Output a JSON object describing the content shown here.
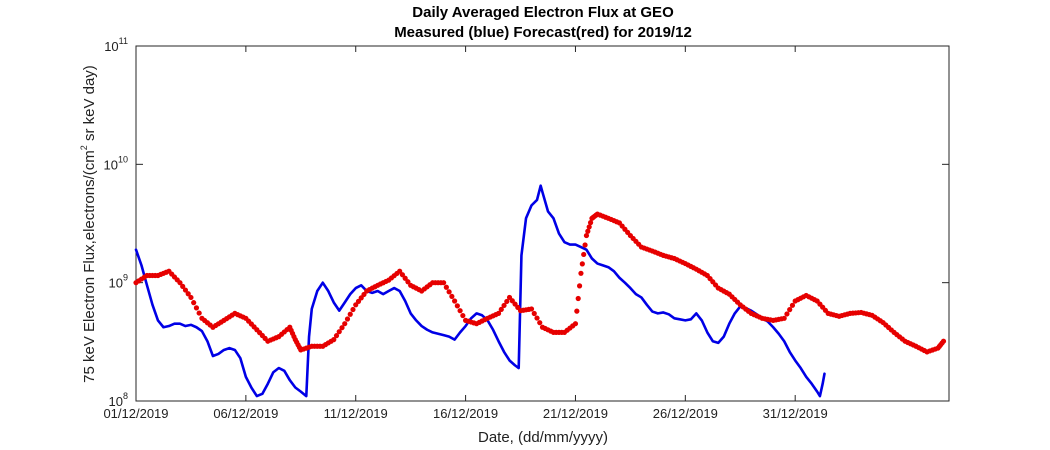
{
  "chart_data": {
    "type": "line",
    "title": "Daily Averaged Electron Flux at GEO",
    "subtitle": "Measured (blue) Forecast(red) for 2019/12",
    "xlabel": "Date, (dd/mm/yyyy)",
    "ylabel": {
      "prefix": "75 keV Electron Flux,electrons/(cm",
      "sup": "2",
      "suffix": " sr keV day)"
    },
    "yscale": "log",
    "ylim": [
      100000000,
      100000000000
    ],
    "xlim": [
      "2019-12-01",
      "2020-01-07"
    ],
    "y_ticks": [
      {
        "base": "10",
        "exp": "8",
        "value": 100000000
      },
      {
        "base": "10",
        "exp": "9",
        "value": 1000000000
      },
      {
        "base": "10",
        "exp": "10",
        "value": 10000000000
      },
      {
        "base": "10",
        "exp": "11",
        "value": 100000000000
      }
    ],
    "x_ticks": [
      {
        "label": "01/12/2019",
        "date": "2019-12-01"
      },
      {
        "label": "06/12/2019",
        "date": "2019-12-06"
      },
      {
        "label": "11/12/2019",
        "date": "2019-12-11"
      },
      {
        "label": "16/12/2019",
        "date": "2019-12-16"
      },
      {
        "label": "21/12/2019",
        "date": "2019-12-21"
      },
      {
        "label": "26/12/2019",
        "date": "2019-12-26"
      },
      {
        "label": "31/12/2019",
        "date": "2019-12-31"
      }
    ],
    "grid": false,
    "series": [
      {
        "color": "#0000e6",
        "style": "line",
        "points": [
          [
            "2019-12-01 00:00",
            1900000000.0
          ],
          [
            "2019-12-01 06:00",
            1400000000.0
          ],
          [
            "2019-12-01 12:00",
            950000000.0
          ],
          [
            "2019-12-01 18:00",
            650000000.0
          ],
          [
            "2019-12-02 00:00",
            480000000.0
          ],
          [
            "2019-12-02 06:00",
            420000000.0
          ],
          [
            "2019-12-02 12:00",
            430000000.0
          ],
          [
            "2019-12-02 18:00",
            450000000.0
          ],
          [
            "2019-12-03 00:00",
            450000000.0
          ],
          [
            "2019-12-03 06:00",
            430000000.0
          ],
          [
            "2019-12-03 12:00",
            440000000.0
          ],
          [
            "2019-12-03 18:00",
            420000000.0
          ],
          [
            "2019-12-04 00:00",
            390000000.0
          ],
          [
            "2019-12-04 06:00",
            320000000.0
          ],
          [
            "2019-12-04 12:00",
            240000000.0
          ],
          [
            "2019-12-04 18:00",
            250000000.0
          ],
          [
            "2019-12-05 00:00",
            270000000.0
          ],
          [
            "2019-12-05 06:00",
            280000000.0
          ],
          [
            "2019-12-05 12:00",
            270000000.0
          ],
          [
            "2019-12-05 18:00",
            230000000.0
          ],
          [
            "2019-12-06 00:00",
            160000000.0
          ],
          [
            "2019-12-06 06:00",
            130000000.0
          ],
          [
            "2019-12-06 12:00",
            110000000.0
          ],
          [
            "2019-12-06 18:00",
            115000000.0
          ],
          [
            "2019-12-07 00:00",
            140000000.0
          ],
          [
            "2019-12-07 06:00",
            175000000.0
          ],
          [
            "2019-12-07 12:00",
            190000000.0
          ],
          [
            "2019-12-07 18:00",
            180000000.0
          ],
          [
            "2019-12-08 00:00",
            150000000.0
          ],
          [
            "2019-12-08 06:00",
            130000000.0
          ],
          [
            "2019-12-08 12:00",
            120000000.0
          ],
          [
            "2019-12-08 18:00",
            110000000.0
          ],
          [
            "2019-12-08 21:00",
            350000000.0
          ],
          [
            "2019-12-09 00:00",
            600000000.0
          ],
          [
            "2019-12-09 06:00",
            850000000.0
          ],
          [
            "2019-12-09 12:00",
            1000000000.0
          ],
          [
            "2019-12-09 18:00",
            850000000.0
          ],
          [
            "2019-12-10 00:00",
            680000000.0
          ],
          [
            "2019-12-10 06:00",
            580000000.0
          ],
          [
            "2019-12-10 12:00",
            680000000.0
          ],
          [
            "2019-12-10 18:00",
            800000000.0
          ],
          [
            "2019-12-11 00:00",
            900000000.0
          ],
          [
            "2019-12-11 06:00",
            950000000.0
          ],
          [
            "2019-12-11 12:00",
            850000000.0
          ],
          [
            "2019-12-11 18:00",
            820000000.0
          ],
          [
            "2019-12-12 00:00",
            850000000.0
          ],
          [
            "2019-12-12 06:00",
            800000000.0
          ],
          [
            "2019-12-12 12:00",
            850000000.0
          ],
          [
            "2019-12-12 18:00",
            900000000.0
          ],
          [
            "2019-12-13 00:00",
            850000000.0
          ],
          [
            "2019-12-13 06:00",
            700000000.0
          ],
          [
            "2019-12-13 12:00",
            550000000.0
          ],
          [
            "2019-12-13 18:00",
            480000000.0
          ],
          [
            "2019-12-14 00:00",
            430000000.0
          ],
          [
            "2019-12-14 06:00",
            400000000.0
          ],
          [
            "2019-12-14 12:00",
            380000000.0
          ],
          [
            "2019-12-14 18:00",
            370000000.0
          ],
          [
            "2019-12-15 00:00",
            360000000.0
          ],
          [
            "2019-12-15 06:00",
            350000000.0
          ],
          [
            "2019-12-15 12:00",
            330000000.0
          ],
          [
            "2019-12-15 18:00",
            380000000.0
          ],
          [
            "2019-12-16 00:00",
            430000000.0
          ],
          [
            "2019-12-16 06:00",
            500000000.0
          ],
          [
            "2019-12-16 12:00",
            550000000.0
          ],
          [
            "2019-12-16 18:00",
            530000000.0
          ],
          [
            "2019-12-17 00:00",
            480000000.0
          ],
          [
            "2019-12-17 06:00",
            400000000.0
          ],
          [
            "2019-12-17 12:00",
            320000000.0
          ],
          [
            "2019-12-17 18:00",
            260000000.0
          ],
          [
            "2019-12-18 00:00",
            220000000.0
          ],
          [
            "2019-12-18 06:00",
            200000000.0
          ],
          [
            "2019-12-18 10:00",
            190000000.0
          ],
          [
            "2019-12-18 13:00",
            1700000000.0
          ],
          [
            "2019-12-18 18:00",
            3500000000.0
          ],
          [
            "2019-12-19 00:00",
            4500000000.0
          ],
          [
            "2019-12-19 06:00",
            5000000000.0
          ],
          [
            "2019-12-19 10:00",
            6600000000.0
          ],
          [
            "2019-12-19 12:00",
            5800000000.0
          ],
          [
            "2019-12-19 18:00",
            4000000000.0
          ],
          [
            "2019-12-20 00:00",
            3500000000.0
          ],
          [
            "2019-12-20 06:00",
            2600000000.0
          ],
          [
            "2019-12-20 12:00",
            2200000000.0
          ],
          [
            "2019-12-20 18:00",
            2100000000.0
          ],
          [
            "2019-12-21 00:00",
            2100000000.0
          ],
          [
            "2019-12-21 06:00",
            2000000000.0
          ],
          [
            "2019-12-21 12:00",
            1900000000.0
          ],
          [
            "2019-12-21 18:00",
            1600000000.0
          ],
          [
            "2019-12-22 00:00",
            1450000000.0
          ],
          [
            "2019-12-22 06:00",
            1400000000.0
          ],
          [
            "2019-12-22 12:00",
            1350000000.0
          ],
          [
            "2019-12-22 18:00",
            1250000000.0
          ],
          [
            "2019-12-23 00:00",
            1100000000.0
          ],
          [
            "2019-12-23 06:00",
            1000000000.0
          ],
          [
            "2019-12-23 12:00",
            900000000.0
          ],
          [
            "2019-12-23 18:00",
            800000000.0
          ],
          [
            "2019-12-24 00:00",
            750000000.0
          ],
          [
            "2019-12-24 06:00",
            650000000.0
          ],
          [
            "2019-12-24 12:00",
            570000000.0
          ],
          [
            "2019-12-24 18:00",
            550000000.0
          ],
          [
            "2019-12-25 00:00",
            560000000.0
          ],
          [
            "2019-12-25 06:00",
            540000000.0
          ],
          [
            "2019-12-25 12:00",
            500000000.0
          ],
          [
            "2019-12-25 18:00",
            490000000.0
          ],
          [
            "2019-12-26 00:00",
            480000000.0
          ],
          [
            "2019-12-26 06:00",
            490000000.0
          ],
          [
            "2019-12-26 12:00",
            550000000.0
          ],
          [
            "2019-12-26 18:00",
            480000000.0
          ],
          [
            "2019-12-27 00:00",
            380000000.0
          ],
          [
            "2019-12-27 06:00",
            320000000.0
          ],
          [
            "2019-12-27 12:00",
            310000000.0
          ],
          [
            "2019-12-27 18:00",
            350000000.0
          ],
          [
            "2019-12-28 00:00",
            450000000.0
          ],
          [
            "2019-12-28 06:00",
            550000000.0
          ],
          [
            "2019-12-28 12:00",
            630000000.0
          ],
          [
            "2019-12-28 18:00",
            610000000.0
          ],
          [
            "2019-12-29 00:00",
            580000000.0
          ],
          [
            "2019-12-29 06:00",
            540000000.0
          ],
          [
            "2019-12-29 12:00",
            500000000.0
          ],
          [
            "2019-12-29 18:00",
            470000000.0
          ],
          [
            "2019-12-30 00:00",
            420000000.0
          ],
          [
            "2019-12-30 06:00",
            370000000.0
          ],
          [
            "2019-12-30 12:00",
            320000000.0
          ],
          [
            "2019-12-30 18:00",
            260000000.0
          ],
          [
            "2019-12-31 00:00",
            220000000.0
          ],
          [
            "2019-12-31 06:00",
            190000000.0
          ],
          [
            "2019-12-31 12:00",
            160000000.0
          ],
          [
            "2019-12-31 18:00",
            140000000.0
          ],
          [
            "2020-01-01 00:00",
            120000000.0
          ],
          [
            "2020-01-01 03:00",
            110000000.0
          ],
          [
            "2020-01-01 06:00",
            140000000.0
          ],
          [
            "2020-01-01 08:00",
            170000000.0
          ]
        ]
      },
      {
        "color": "#e60000",
        "style": "dots",
        "points": [
          [
            "2019-12-01 00:00",
            1000000000.0
          ],
          [
            "2019-12-01 12:00",
            1150000000.0
          ],
          [
            "2019-12-02 00:00",
            1150000000.0
          ],
          [
            "2019-12-02 12:00",
            1250000000.0
          ],
          [
            "2019-12-03 00:00",
            1000000000.0
          ],
          [
            "2019-12-03 12:00",
            750000000.0
          ],
          [
            "2019-12-04 00:00",
            500000000.0
          ],
          [
            "2019-12-04 12:00",
            420000000.0
          ],
          [
            "2019-12-05 00:00",
            480000000.0
          ],
          [
            "2019-12-05 12:00",
            550000000.0
          ],
          [
            "2019-12-06 00:00",
            500000000.0
          ],
          [
            "2019-12-06 12:00",
            400000000.0
          ],
          [
            "2019-12-07 00:00",
            320000000.0
          ],
          [
            "2019-12-07 12:00",
            350000000.0
          ],
          [
            "2019-12-08 00:00",
            420000000.0
          ],
          [
            "2019-12-08 06:00",
            330000000.0
          ],
          [
            "2019-12-08 12:00",
            270000000.0
          ],
          [
            "2019-12-09 00:00",
            290000000.0
          ],
          [
            "2019-12-09 12:00",
            290000000.0
          ],
          [
            "2019-12-10 00:00",
            330000000.0
          ],
          [
            "2019-12-10 12:00",
            450000000.0
          ],
          [
            "2019-12-11 00:00",
            650000000.0
          ],
          [
            "2019-12-11 12:00",
            850000000.0
          ],
          [
            "2019-12-12 00:00",
            950000000.0
          ],
          [
            "2019-12-12 12:00",
            1050000000.0
          ],
          [
            "2019-12-13 00:00",
            1250000000.0
          ],
          [
            "2019-12-13 12:00",
            950000000.0
          ],
          [
            "2019-12-14 00:00",
            850000000.0
          ],
          [
            "2019-12-14 12:00",
            1000000000.0
          ],
          [
            "2019-12-15 00:00",
            1000000000.0
          ],
          [
            "2019-12-15 12:00",
            700000000.0
          ],
          [
            "2019-12-16 00:00",
            480000000.0
          ],
          [
            "2019-12-16 12:00",
            450000000.0
          ],
          [
            "2019-12-17 00:00",
            500000000.0
          ],
          [
            "2019-12-17 12:00",
            550000000.0
          ],
          [
            "2019-12-18 00:00",
            750000000.0
          ],
          [
            "2019-12-18 12:00",
            580000000.0
          ],
          [
            "2019-12-19 00:00",
            600000000.0
          ],
          [
            "2019-12-19 12:00",
            420000000.0
          ],
          [
            "2019-12-20 00:00",
            380000000.0
          ],
          [
            "2019-12-20 12:00",
            380000000.0
          ],
          [
            "2019-12-21 00:00",
            450000000.0
          ],
          [
            "2019-12-21 06:00",
            1200000000.0
          ],
          [
            "2019-12-21 12:00",
            2500000000.0
          ],
          [
            "2019-12-21 18:00",
            3500000000.0
          ],
          [
            "2019-12-22 00:00",
            3800000000.0
          ],
          [
            "2019-12-22 12:00",
            3500000000.0
          ],
          [
            "2019-12-23 00:00",
            3200000000.0
          ],
          [
            "2019-12-23 12:00",
            2500000000.0
          ],
          [
            "2019-12-24 00:00",
            2000000000.0
          ],
          [
            "2019-12-24 12:00",
            1850000000.0
          ],
          [
            "2019-12-25 00:00",
            1700000000.0
          ],
          [
            "2019-12-25 12:00",
            1600000000.0
          ],
          [
            "2019-12-26 00:00",
            1450000000.0
          ],
          [
            "2019-12-26 12:00",
            1300000000.0
          ],
          [
            "2019-12-27 00:00",
            1150000000.0
          ],
          [
            "2019-12-27 12:00",
            900000000.0
          ],
          [
            "2019-12-28 00:00",
            800000000.0
          ],
          [
            "2019-12-28 12:00",
            650000000.0
          ],
          [
            "2019-12-29 00:00",
            550000000.0
          ],
          [
            "2019-12-29 12:00",
            500000000.0
          ],
          [
            "2019-12-30 00:00",
            480000000.0
          ],
          [
            "2019-12-30 12:00",
            500000000.0
          ],
          [
            "2019-12-31 00:00",
            700000000.0
          ],
          [
            "2019-12-31 12:00",
            780000000.0
          ],
          [
            "2020-01-01 00:00",
            700000000.0
          ],
          [
            "2020-01-01 12:00",
            550000000.0
          ],
          [
            "2020-01-02 00:00",
            520000000.0
          ],
          [
            "2020-01-02 12:00",
            550000000.0
          ],
          [
            "2020-01-03 00:00",
            560000000.0
          ],
          [
            "2020-01-03 12:00",
            530000000.0
          ],
          [
            "2020-01-04 00:00",
            460000000.0
          ],
          [
            "2020-01-04 12:00",
            380000000.0
          ],
          [
            "2020-01-05 00:00",
            320000000.0
          ],
          [
            "2020-01-05 12:00",
            290000000.0
          ],
          [
            "2020-01-06 00:00",
            260000000.0
          ],
          [
            "2020-01-06 12:00",
            280000000.0
          ],
          [
            "2020-01-06 18:00",
            320000000.0
          ]
        ]
      }
    ]
  }
}
